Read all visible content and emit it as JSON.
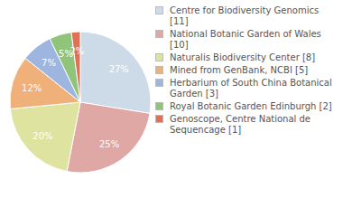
{
  "chart_data": {
    "type": "pie",
    "categories": [
      "Centre for Biodiversity Genomics [11]",
      "National Botanic Garden of Wales [10]",
      "Naturalis Biodiversity Center [8]",
      "Mined from GenBank, NCBI [5]",
      "Herbarium of South China Botanical Garden [3]",
      "Royal Botanic Garden Edinburgh [2]",
      "Genoscope, Centre National de Sequencage [1]"
    ],
    "values": [
      27,
      25,
      20,
      12,
      7,
      5,
      2
    ],
    "value_labels": [
      "27%",
      "25%",
      "20%",
      "12%",
      "7%",
      "5%",
      "2%"
    ],
    "colors": [
      "#cddbe8",
      "#e0a8a4",
      "#dfe3a0",
      "#f0b07a",
      "#9db5df",
      "#8fc47a",
      "#e07056"
    ]
  }
}
